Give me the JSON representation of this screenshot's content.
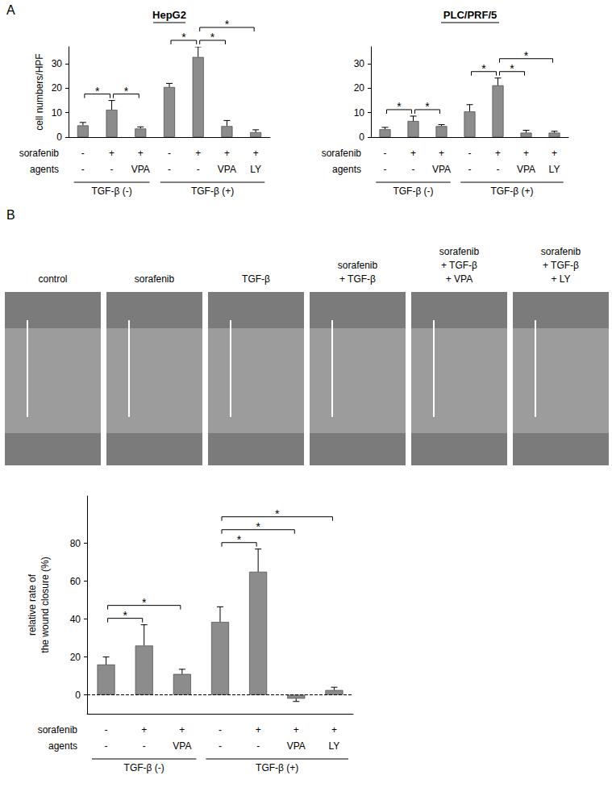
{
  "panel_labels": [
    "A",
    "B"
  ],
  "chart_data": [
    {
      "type": "bar",
      "title": "HepG2",
      "y_label": "cell numbers/HPF",
      "categories": [
        null,
        null,
        null,
        null,
        null,
        null,
        null
      ],
      "values": [
        4.8,
        11.2,
        3.5,
        20.5,
        32.8,
        4.5,
        2.0
      ],
      "errors": [
        1.2,
        3.8,
        0.7,
        1.5,
        4.2,
        2.3,
        1.0
      ],
      "color": "#8c8c8c",
      "ylim": [
        0,
        37
      ],
      "yticks": [
        0,
        10,
        20,
        30
      ],
      "grid": false,
      "rows": [
        {
          "label": "sorafenib",
          "values": [
            "-",
            "+",
            "+",
            "-",
            "+",
            "+",
            "+"
          ]
        },
        {
          "label": "agents",
          "values": [
            "-",
            "-",
            "VPA",
            "-",
            "-",
            "VPA",
            "LY"
          ]
        }
      ],
      "groups": [
        {
          "label": "TGF-β (-)",
          "from": 0,
          "to": 2
        },
        {
          "label": "TGF-β (+)",
          "from": 3,
          "to": 6
        }
      ],
      "significance": {
        "label": "*",
        "pairs": [
          [
            0,
            1
          ],
          [
            1,
            2
          ],
          [
            3,
            4
          ],
          [
            4,
            5
          ],
          [
            4,
            6
          ]
        ]
      }
    },
    {
      "type": "bar",
      "title": "PLC/PRF/5",
      "categories": [
        null,
        null,
        null,
        null,
        null,
        null,
        null
      ],
      "values": [
        3.2,
        6.6,
        4.5,
        10.5,
        21.2,
        1.8,
        1.8
      ],
      "errors": [
        0.8,
        2.0,
        0.6,
        2.8,
        3.0,
        1.0,
        0.6
      ],
      "color": "#8c8c8c",
      "ylim": [
        0,
        37
      ],
      "yticks": [
        0,
        10,
        20,
        30
      ],
      "grid": false,
      "rows": [
        {
          "label": "sorafenib",
          "values": [
            "-",
            "+",
            "+",
            "-",
            "+",
            "+",
            "+"
          ]
        },
        {
          "label": "agents",
          "values": [
            "-",
            "-",
            "VPA",
            "-",
            "-",
            "VPA",
            "LY"
          ]
        }
      ],
      "groups": [
        {
          "label": "TGF-β (-)",
          "from": 0,
          "to": 2
        },
        {
          "label": "TGF-β (+)",
          "from": 3,
          "to": 6
        }
      ],
      "significance": {
        "label": "*",
        "pairs": [
          [
            0,
            1
          ],
          [
            1,
            2
          ],
          [
            3,
            4
          ],
          [
            4,
            5
          ],
          [
            4,
            6
          ]
        ]
      }
    },
    {
      "type": "bar",
      "y_label": [
        "relative rate of",
        "the wound closure (%)"
      ],
      "categories": [
        null,
        null,
        null,
        null,
        null,
        null,
        null
      ],
      "values": [
        16,
        26,
        11,
        38.5,
        65,
        -2,
        2.5
      ],
      "errors": [
        4,
        11,
        2.5,
        8,
        12,
        1.5,
        1.5
      ],
      "color": "#8c8c8c",
      "ylim": [
        -10,
        105
      ],
      "yticks": [
        0,
        20,
        40,
        60,
        80
      ],
      "grid": false,
      "hline": {
        "value": 0,
        "line_style": "dashed"
      },
      "rows": [
        {
          "label": "sorafenib",
          "values": [
            "-",
            "+",
            "+",
            "-",
            "+",
            "+",
            "+"
          ]
        },
        {
          "label": "agents",
          "values": [
            "-",
            "-",
            "VPA",
            "-",
            "-",
            "VPA",
            "LY"
          ]
        }
      ],
      "groups": [
        {
          "label": "TGF-β (-)",
          "from": 0,
          "to": 2
        },
        {
          "label": "TGF-β (+)",
          "from": 3,
          "to": 6
        }
      ],
      "significance": {
        "label": "*",
        "pairs": [
          [
            0,
            1
          ],
          [
            0,
            2
          ],
          [
            3,
            4
          ],
          [
            3,
            5
          ],
          [
            3,
            6
          ]
        ]
      }
    }
  ],
  "images": {
    "captions": [
      [
        "control"
      ],
      [
        "sorafenib"
      ],
      [
        "TGF-β"
      ],
      [
        "sorafenib",
        "+ TGF-β"
      ],
      [
        "sorafenib",
        "+ TGF-β",
        "+ VPA"
      ],
      [
        "sorafenib",
        "+ TGF-β",
        "+ LY"
      ]
    ]
  }
}
